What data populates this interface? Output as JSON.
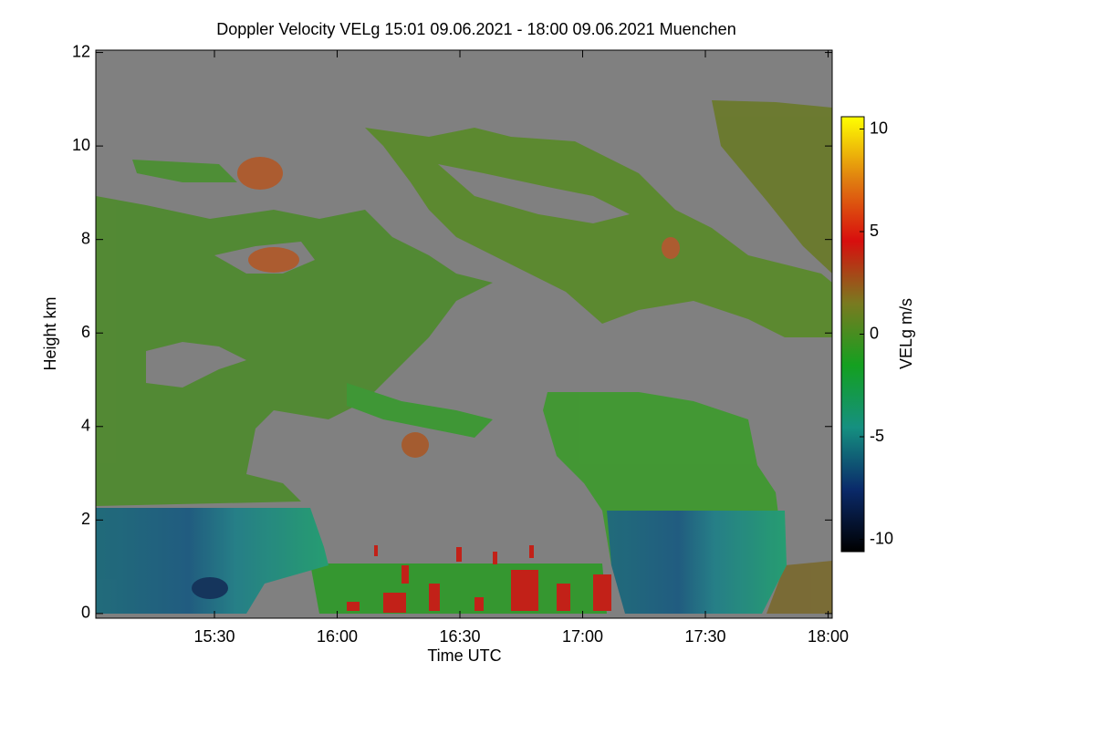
{
  "chart_data": {
    "type": "heatmap",
    "title": "Doppler Velocity VELg   15:01 09.06.2021 - 18:00 09.06.2021 Muenchen",
    "x_label": "Time UTC",
    "y_label": "Height km",
    "colorbar_label": "VELg m/s",
    "xlim": [
      901,
      1081
    ],
    "xticks": [
      {
        "value": 930,
        "label": "15:30"
      },
      {
        "value": 960,
        "label": "16:00"
      },
      {
        "value": 990,
        "label": "16:30"
      },
      {
        "value": 1020,
        "label": "17:00"
      },
      {
        "value": 1050,
        "label": "17:30"
      },
      {
        "value": 1080,
        "label": "18:00"
      }
    ],
    "ylim": [
      -0.1,
      12.05
    ],
    "yticks": [
      0,
      2,
      4,
      6,
      8,
      10,
      12
    ],
    "zlim": [
      -10.6,
      10.6
    ],
    "zticks": [
      -10,
      -5,
      0,
      5,
      10
    ],
    "colormap": [
      "#000000",
      "#0a2a6a",
      "#159080",
      "#14a020",
      "#7a7a20",
      "#d80e0e",
      "#e08010",
      "#ffff00"
    ],
    "background_color": "#808080"
  }
}
